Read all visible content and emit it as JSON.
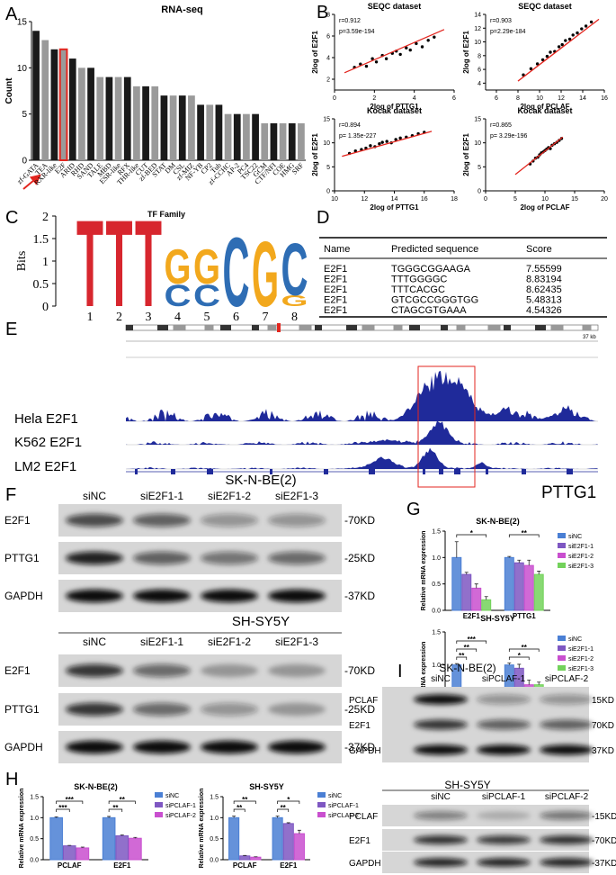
{
  "panel_labels": [
    "A",
    "B",
    "C",
    "D",
    "E",
    "F",
    "G",
    "H",
    "I"
  ],
  "chart_data": [
    {
      "type": "bar",
      "title": "RNA-seq",
      "ylabel": "Count",
      "categories": [
        "zf-GATA",
        "TEA",
        "RXR-like",
        "E2F",
        "ARID",
        "RHD",
        "SAND",
        "TALE",
        "MBD",
        "ESR-like",
        "RFX",
        "THR-like",
        "CUT",
        "zf-BED",
        "STAT",
        "DM",
        "CSL",
        "zf-MIZ",
        "NF-YB",
        "CP2",
        "Tub",
        "zf-CCHC",
        "AP-2",
        "PC4",
        "TSC22",
        "GCM",
        "CTF/NFI",
        "COE",
        "HMG",
        "SRF"
      ],
      "values": [
        14,
        13,
        12,
        12,
        11,
        10,
        10,
        9,
        9,
        9,
        9,
        8,
        8,
        8,
        7,
        7,
        7,
        7,
        6,
        6,
        6,
        5,
        5,
        5,
        5,
        4,
        4,
        4,
        4,
        4
      ],
      "color": "#1a1a1a",
      "alt_color": "#9a9a9a",
      "highlight_color": "#e3261f",
      "highlight_category": "E2F",
      "ylim": [
        0,
        15
      ],
      "yticks": [
        0,
        5,
        10,
        15
      ]
    },
    {
      "type": "scatter",
      "title": "SEQC dataset",
      "annotations": [
        "r=0.912",
        "p=3.59e-194"
      ],
      "xlabel": "2log of PTTG1",
      "ylabel": "2log of E2F1",
      "x": [
        1.0,
        1.3,
        1.6,
        1.9,
        2.1,
        2.4,
        2.6,
        2.9,
        3.1,
        3.3,
        3.6,
        3.8,
        4.1,
        4.4,
        4.7,
        5.0
      ],
      "y": [
        3.1,
        3.4,
        3.2,
        3.9,
        3.6,
        4.2,
        3.9,
        4.4,
        4.6,
        4.3,
        4.9,
        4.7,
        5.3,
        5.0,
        5.6,
        5.9
      ],
      "fit_x": [
        0.5,
        5.5
      ],
      "fit_y": [
        2.6,
        6.6
      ],
      "color": "#000000",
      "fit_color": "#e3261f",
      "xlim": [
        0,
        6
      ],
      "xticks": [
        0,
        2,
        4,
        6
      ],
      "ylim": [
        1,
        8
      ],
      "yticks": [
        2,
        4,
        6,
        8
      ]
    },
    {
      "type": "scatter",
      "title": "SEQC dataset",
      "annotations": [
        "r=0.903",
        "p=2.29e-184"
      ],
      "xlabel": "2log of PCLAF",
      "ylabel": "2log of E2F1",
      "x": [
        8.5,
        9.2,
        9.8,
        10.3,
        10.7,
        11.0,
        11.4,
        11.8,
        12.1,
        12.4,
        12.8,
        13.1,
        13.5,
        13.9,
        14.3,
        14.8
      ],
      "y": [
        5.2,
        6.1,
        6.8,
        7.4,
        7.9,
        8.5,
        8.6,
        9.3,
        9.6,
        10.2,
        10.4,
        11.0,
        11.3,
        11.9,
        12.3,
        12.9
      ],
      "fit_x": [
        8,
        15.5
      ],
      "fit_y": [
        4.3,
        13.3
      ],
      "color": "#000000",
      "fit_color": "#e3261f",
      "xlim": [
        5,
        16
      ],
      "xticks": [
        6,
        8,
        10,
        12,
        14,
        16
      ],
      "ylim": [
        3,
        14
      ],
      "yticks": [
        4,
        6,
        8,
        10,
        12,
        14
      ]
    },
    {
      "type": "scatter",
      "title": "Kocak dataset",
      "annotations": [
        "r=0.894",
        "p= 1.35e-227"
      ],
      "xlabel": "2log of PTTG1",
      "ylabel": "2log of E2F1",
      "x": [
        11.0,
        11.4,
        11.8,
        12.1,
        12.4,
        12.7,
        13.0,
        13.2,
        13.5,
        13.8,
        14.1,
        14.4,
        14.8,
        15.2,
        15.6,
        16.0
      ],
      "y": [
        7.8,
        8.3,
        8.6,
        8.9,
        9.4,
        9.2,
        9.8,
        10.1,
        10.3,
        10.0,
        10.7,
        11.0,
        11.2,
        11.5,
        11.9,
        12.2
      ],
      "fit_x": [
        10.5,
        16.5
      ],
      "fit_y": [
        7.2,
        12.4
      ],
      "color": "#000000",
      "fit_color": "#e3261f",
      "xlim": [
        10,
        18
      ],
      "xticks": [
        10,
        12,
        14,
        16,
        18
      ],
      "ylim": [
        0,
        15
      ],
      "yticks": [
        0,
        5,
        10,
        15
      ]
    },
    {
      "type": "scatter",
      "title": "Kocak dataset",
      "annotations": [
        "r=0.865",
        "p= 3.29e-196"
      ],
      "xlabel": "2log of PCLAF",
      "ylabel": "2log of E2F1",
      "x": [
        7.5,
        8.0,
        8.4,
        8.8,
        9.1,
        9.4,
        9.7,
        10.0,
        10.3,
        10.6,
        10.9,
        11.2,
        11.6,
        12.0,
        12.4,
        12.8
      ],
      "y": [
        5.6,
        6.2,
        6.8,
        7.0,
        7.5,
        7.9,
        8.1,
        8.4,
        8.7,
        9.0,
        8.8,
        9.5,
        9.8,
        10.1,
        10.5,
        10.9
      ],
      "fit_x": [
        5,
        13
      ],
      "fit_y": [
        3.4,
        11.2
      ],
      "color": "#000000",
      "fit_color": "#e3261f",
      "xlim": [
        0,
        20
      ],
      "xticks": [
        0,
        5,
        10,
        15,
        20
      ],
      "ylim": [
        0,
        15
      ],
      "yticks": [
        0,
        5,
        10,
        15
      ]
    },
    {
      "type": "grouped_bar",
      "title": "SK-N-BE(2)",
      "ylabel": "Relative mRNA expression",
      "categories": [
        "E2F1",
        "PTTG1"
      ],
      "series": [
        {
          "name": "siNC",
          "color": "#4a7fd4",
          "values": [
            1.0,
            1.0
          ],
          "errors": [
            0.3,
            0.02
          ]
        },
        {
          "name": "siE2F1-1",
          "color": "#7e57c2",
          "values": [
            0.68,
            0.9
          ],
          "errors": [
            0.04,
            0.05
          ]
        },
        {
          "name": "siE2F1-2",
          "color": "#c94fcf",
          "values": [
            0.42,
            0.85
          ],
          "errors": [
            0.08,
            0.1
          ]
        },
        {
          "name": "siE2F1-3",
          "color": "#73d25b",
          "values": [
            0.2,
            0.68
          ],
          "errors": [
            0.06,
            0.06
          ]
        }
      ],
      "annotations": [
        "*",
        "**"
      ],
      "ylim": [
        0,
        1.5
      ],
      "yticks": [
        {
          "value": 0,
          "label": "0.0"
        },
        0.5,
        {
          "value": 1,
          "label": "1.0"
        },
        1.5
      ]
    },
    {
      "type": "grouped_bar",
      "title": "SH-SY5Y",
      "ylabel": "Relative mRNA expression",
      "categories": [
        "E2F1",
        "PTTG1"
      ],
      "series": [
        {
          "name": "siNC",
          "color": "#4a7fd4",
          "values": [
            1.0,
            1.0
          ],
          "errors": [
            0.02,
            0.03
          ]
        },
        {
          "name": "siE2F1-1",
          "color": "#7e57c2",
          "values": [
            0.55,
            0.95
          ],
          "errors": [
            0.02,
            0.06
          ]
        },
        {
          "name": "siE2F1-2",
          "color": "#c94fcf",
          "values": [
            0.38,
            0.7
          ],
          "errors": [
            0.06,
            0.07
          ]
        },
        {
          "name": "siE2F1-3",
          "color": "#73d25b",
          "values": [
            0.2,
            0.7
          ],
          "errors": [
            0.01,
            0.04
          ]
        }
      ],
      "annotations": [
        "**",
        "**",
        "***",
        "*",
        "**"
      ],
      "ylim": [
        0,
        1.5
      ],
      "yticks": [
        {
          "value": 0,
          "label": "0.0"
        },
        0.5,
        {
          "value": 1,
          "label": "1.0"
        },
        1.5
      ]
    },
    {
      "type": "grouped_bar",
      "title": "SK-N-BE(2)",
      "ylabel": "Relative mRNA expression",
      "categories": [
        "PCLAF",
        "E2F1"
      ],
      "series": [
        {
          "name": "siNC",
          "color": "#4a7fd4",
          "values": [
            1.0,
            1.0
          ],
          "errors": [
            0.02,
            0.03
          ]
        },
        {
          "name": "siPCLAF-1",
          "color": "#7e57c2",
          "values": [
            0.33,
            0.57
          ],
          "errors": [
            0.01,
            0.02
          ]
        },
        {
          "name": "siPCLAF-2",
          "color": "#c94fcf",
          "values": [
            0.28,
            0.51
          ],
          "errors": [
            0.02,
            0.02
          ]
        }
      ],
      "annotations": [
        "***",
        "***",
        "**",
        "**"
      ],
      "ylim": [
        0,
        1.5
      ],
      "yticks": [
        {
          "value": 0,
          "label": "0.0"
        },
        0.5,
        {
          "value": 1,
          "label": "1.0"
        },
        1.5
      ]
    },
    {
      "type": "grouped_bar",
      "title": "SH-SY5Y",
      "ylabel": "Relative mRNA expression",
      "categories": [
        "PCLAF",
        "E2F1"
      ],
      "series": [
        {
          "name": "siNC",
          "color": "#4a7fd4",
          "values": [
            1.0,
            1.0
          ],
          "errors": [
            0.04,
            0.04
          ]
        },
        {
          "name": "siPCLAF-1",
          "color": "#7e57c2",
          "values": [
            0.09,
            0.86
          ],
          "errors": [
            0.01,
            0.02
          ]
        },
        {
          "name": "siPCLAF-2",
          "color": "#c94fcf",
          "values": [
            0.06,
            0.62
          ],
          "errors": [
            0.01,
            0.08
          ]
        }
      ],
      "annotations": [
        "**",
        "**",
        "**",
        "*"
      ],
      "ylim": [
        0,
        1.5
      ],
      "yticks": [
        {
          "value": 0,
          "label": "0.0"
        },
        0.5,
        {
          "value": 1,
          "label": "1.0"
        },
        1.5
      ]
    }
  ],
  "logo": {
    "title": "TF Family",
    "ylabel": "Bits",
    "ylim": [
      0,
      2
    ],
    "yticks": [
      0,
      0.5,
      1,
      1.5,
      2
    ],
    "colors": {
      "T": "#d7262e",
      "G": "#f2a81d",
      "C": "#2e6db4"
    },
    "positions": [
      {
        "label": "1",
        "letters": [
          {
            "letter": "T",
            "bits": 2
          }
        ]
      },
      {
        "label": "2",
        "letters": [
          {
            "letter": "T",
            "bits": 2
          }
        ]
      },
      {
        "label": "3",
        "letters": [
          {
            "letter": "T",
            "bits": 2
          }
        ]
      },
      {
        "label": "4",
        "letters": [
          {
            "letter": "C",
            "bits": 0.5
          },
          {
            "letter": "G",
            "bits": 0.8
          }
        ]
      },
      {
        "label": "5",
        "letters": [
          {
            "letter": "C",
            "bits": 0.5
          },
          {
            "letter": "G",
            "bits": 0.8
          }
        ]
      },
      {
        "label": "6",
        "letters": [
          {
            "letter": "C",
            "bits": 1.6
          }
        ]
      },
      {
        "label": "7",
        "letters": [
          {
            "letter": "G",
            "bits": 1.5
          }
        ]
      },
      {
        "label": "8",
        "letters": [
          {
            "letter": "G",
            "bits": 0.25
          },
          {
            "letter": "C",
            "bits": 1.2
          }
        ]
      }
    ]
  },
  "table": {
    "headers": [
      "Name",
      "Predicted sequence",
      "Score"
    ],
    "rows": [
      [
        "E2F1",
        "TGGGCGGAAGA",
        "7.55599"
      ],
      [
        "E2F1",
        "TTTGGGGC",
        "8.83194"
      ],
      [
        "E2F1",
        "TTTCACGC",
        "8.62435"
      ],
      [
        "E2F1",
        "GTCGCCGGGTGG",
        "5.48313"
      ],
      [
        "E2F1",
        "CTAGCGTGAAA",
        "4.54326"
      ]
    ]
  },
  "genome": {
    "scale_label": "37 kb",
    "tracks": [
      "Hela E2F1",
      "K562 E2F1",
      "LM2 E2F1"
    ],
    "gene": "PTTG1"
  },
  "blots_f": [
    {
      "cell_line": "SK-N-BE(2)",
      "lanes": [
        "siNC",
        "siE2F1-1",
        "siE2F1-2",
        "siE2F1-3"
      ],
      "rows": [
        {
          "protein": "E2F1",
          "size": "-70KD"
        },
        {
          "protein": "PTTG1",
          "size": "-25KD"
        },
        {
          "protein": "GAPDH",
          "size": "-37KD"
        }
      ]
    },
    {
      "cell_line": "SH-SY5Y",
      "lanes": [
        "siNC",
        "siE2F1-1",
        "siE2F1-2",
        "siE2F1-3"
      ],
      "rows": [
        {
          "protein": "E2F1",
          "size": "-70KD"
        },
        {
          "protein": "PTTG1",
          "size": "-25KD"
        },
        {
          "protein": "GAPDH",
          "size": "-37KD"
        }
      ]
    }
  ],
  "blots_i": [
    {
      "cell_line": "SK-N-BE(2)",
      "lanes": [
        "siNC",
        "siPCLAF-1",
        "siPCLAF-2"
      ],
      "rows": [
        {
          "protein": "PCLAF",
          "size": "15KD"
        },
        {
          "protein": "E2F1",
          "size": "70KD"
        },
        {
          "protein": "GAPDH",
          "size": "37KD"
        }
      ]
    },
    {
      "cell_line": "SH-SY5Y",
      "lanes": [
        "siNC",
        "siPCLAF-1",
        "siPCLAF-2"
      ],
      "rows": [
        {
          "protein": "PCLAF",
          "size": "-15KD"
        },
        {
          "protein": "E2F1",
          "size": "-70KD"
        },
        {
          "protein": "GAPDH",
          "size": "-37KD"
        }
      ]
    }
  ]
}
